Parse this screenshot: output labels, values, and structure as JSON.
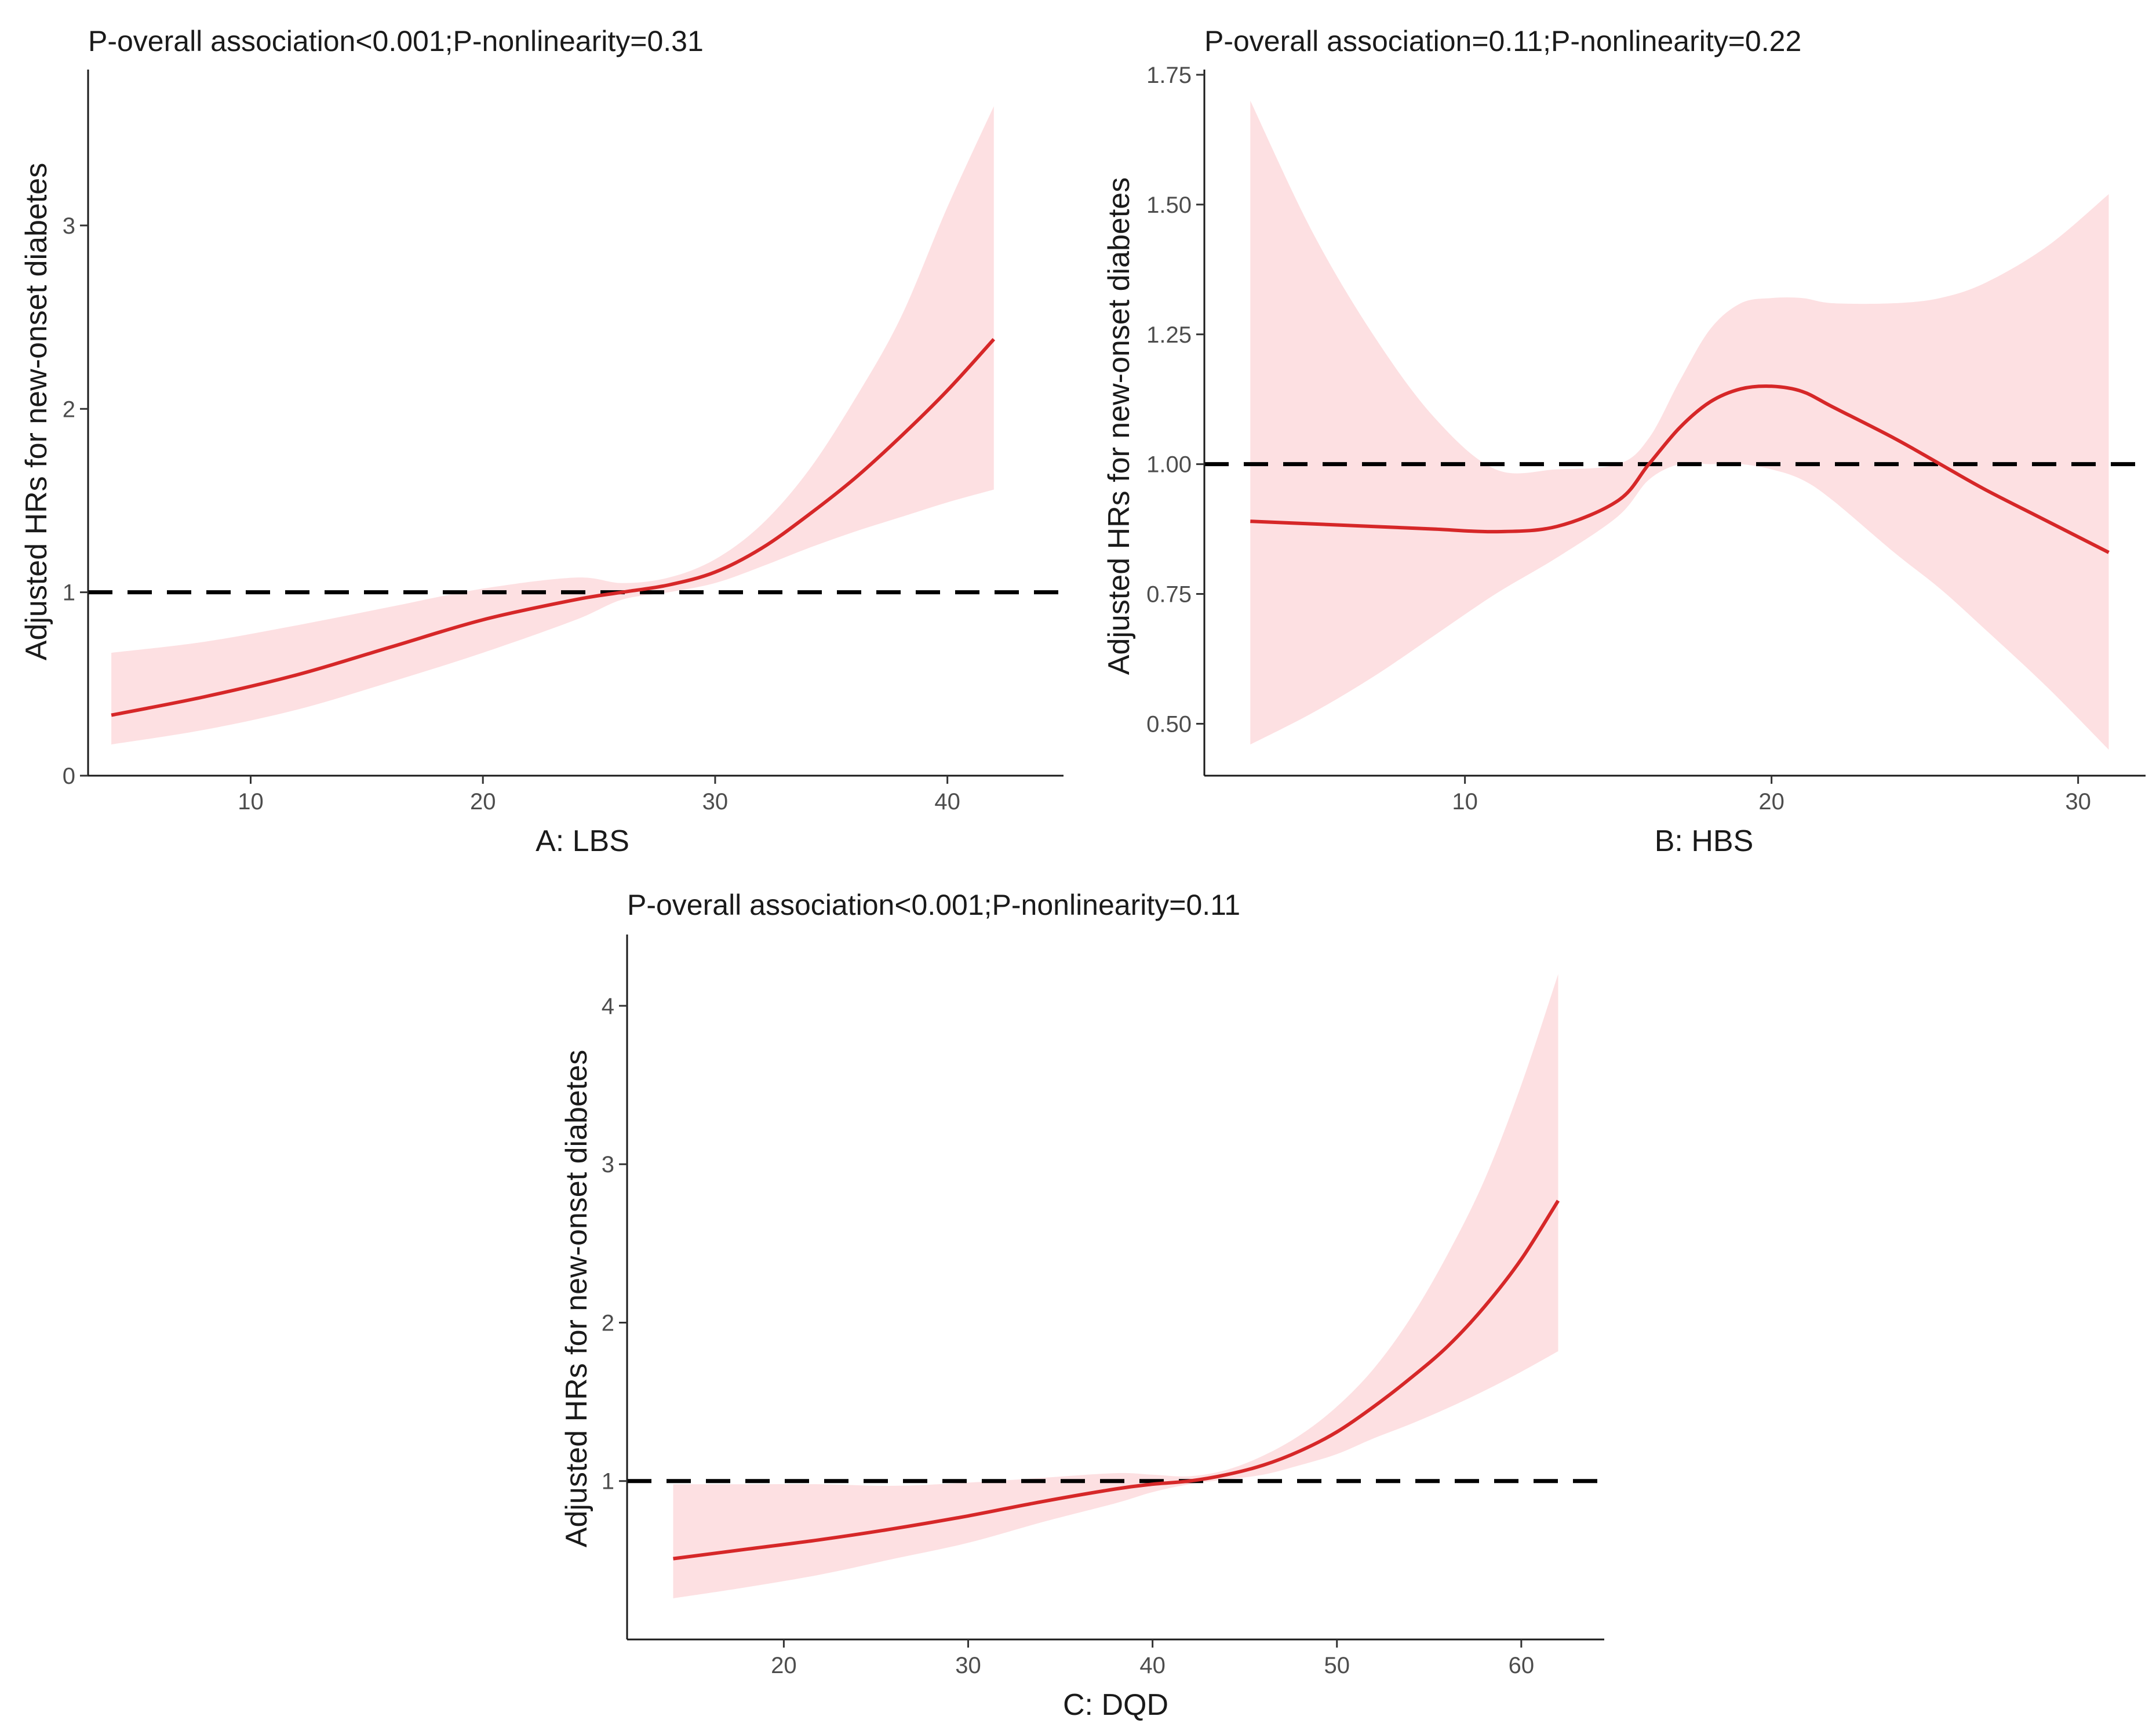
{
  "chart_data": [
    {
      "type": "line",
      "title": "P-overall association<0.001;P-nonlinearity=0.31",
      "xlabel": "A: LBS",
      "ylabel": "Adjusted HRs for new-onset diabetes",
      "xlim": [
        3,
        45
      ],
      "ylim": [
        0,
        3.85
      ],
      "xticks": [
        10,
        20,
        30,
        40
      ],
      "yticks": [
        0,
        1,
        2,
        3
      ],
      "ytick_labels": [
        "0",
        "1",
        "2",
        "3"
      ],
      "reference_line": 1,
      "colors": {
        "line": "#d62728",
        "band": "#fde0e2",
        "reference": "#000000"
      },
      "series": [
        {
          "x": [
            4,
            8,
            12,
            16,
            20,
            24,
            26,
            28,
            30,
            32,
            34,
            36,
            38,
            40,
            42
          ],
          "values": [
            0.33,
            0.43,
            0.55,
            0.7,
            0.85,
            0.96,
            1.0,
            1.04,
            1.11,
            1.24,
            1.42,
            1.62,
            1.85,
            2.1,
            2.38
          ],
          "lower": [
            0.17,
            0.25,
            0.36,
            0.51,
            0.67,
            0.85,
            0.96,
            1.0,
            1.05,
            1.14,
            1.24,
            1.33,
            1.41,
            1.49,
            1.56
          ],
          "upper": [
            0.67,
            0.73,
            0.82,
            0.92,
            1.02,
            1.08,
            1.05,
            1.08,
            1.18,
            1.37,
            1.66,
            2.05,
            2.5,
            3.1,
            3.65
          ]
        }
      ]
    },
    {
      "type": "line",
      "title": "P-overall association=0.11;P-nonlinearity=0.22",
      "xlabel": "B: HBS",
      "ylabel": "Adjusted HRs for new-onset diabetes",
      "xlim": [
        1.5,
        32.2
      ],
      "ylim": [
        0.4,
        1.76
      ],
      "xticks": [
        10,
        20,
        30
      ],
      "yticks": [
        0.5,
        0.75,
        1.0,
        1.25,
        1.5,
        1.75
      ],
      "ytick_labels": [
        "0.50",
        "0.75",
        "1.00",
        "1.25",
        "1.50",
        "1.75"
      ],
      "reference_line": 1.0,
      "colors": {
        "line": "#d62728",
        "band": "#fde0e2",
        "reference": "#000000"
      },
      "series": [
        {
          "x": [
            3,
            5,
            7,
            9,
            11,
            13,
            15,
            16,
            17,
            18,
            19,
            20,
            21,
            22,
            24,
            25.5,
            27,
            29,
            31
          ],
          "values": [
            0.89,
            0.885,
            0.88,
            0.875,
            0.87,
            0.88,
            0.93,
            1.0,
            1.07,
            1.12,
            1.145,
            1.15,
            1.14,
            1.11,
            1.05,
            1.0,
            0.95,
            0.89,
            0.83
          ],
          "lower": [
            0.46,
            0.52,
            0.59,
            0.67,
            0.75,
            0.82,
            0.9,
            0.97,
            1.0,
            1.0,
            1.0,
            0.99,
            0.97,
            0.93,
            0.83,
            0.76,
            0.68,
            0.57,
            0.45
          ],
          "upper": [
            1.7,
            1.45,
            1.25,
            1.09,
            0.99,
            0.99,
            1.0,
            1.05,
            1.16,
            1.26,
            1.31,
            1.32,
            1.32,
            1.31,
            1.31,
            1.32,
            1.35,
            1.42,
            1.52
          ]
        }
      ]
    },
    {
      "type": "line",
      "title": "P-overall association<0.001;P-nonlinearity=0.11",
      "xlabel": "C: DQD",
      "ylabel": "Adjusted HRs for new-onset diabetes",
      "xlim": [
        11.5,
        64.5
      ],
      "ylim": [
        0,
        4.45
      ],
      "xticks": [
        20,
        30,
        40,
        50,
        60
      ],
      "yticks": [
        1,
        2,
        3,
        4
      ],
      "ytick_labels": [
        "1",
        "2",
        "3",
        "4"
      ],
      "reference_line": 1,
      "colors": {
        "line": "#d62728",
        "band": "#fde0e2",
        "reference": "#000000"
      },
      "series": [
        {
          "x": [
            14,
            18,
            22,
            26,
            30,
            34,
            38,
            40,
            42,
            44,
            46,
            48,
            50,
            52,
            54,
            56,
            58,
            60,
            62
          ],
          "values": [
            0.51,
            0.57,
            0.63,
            0.7,
            0.78,
            0.87,
            0.95,
            0.98,
            1.0,
            1.04,
            1.1,
            1.19,
            1.31,
            1.47,
            1.65,
            1.85,
            2.1,
            2.4,
            2.77
          ],
          "lower": [
            0.26,
            0.33,
            0.41,
            0.51,
            0.61,
            0.74,
            0.86,
            0.93,
            0.98,
            1.01,
            1.04,
            1.1,
            1.17,
            1.27,
            1.36,
            1.46,
            1.57,
            1.69,
            1.82
          ],
          "upper": [
            0.98,
            0.98,
            0.98,
            0.97,
            0.99,
            1.02,
            1.05,
            1.04,
            1.03,
            1.07,
            1.16,
            1.29,
            1.47,
            1.71,
            2.03,
            2.43,
            2.9,
            3.5,
            4.2
          ]
        }
      ]
    }
  ]
}
